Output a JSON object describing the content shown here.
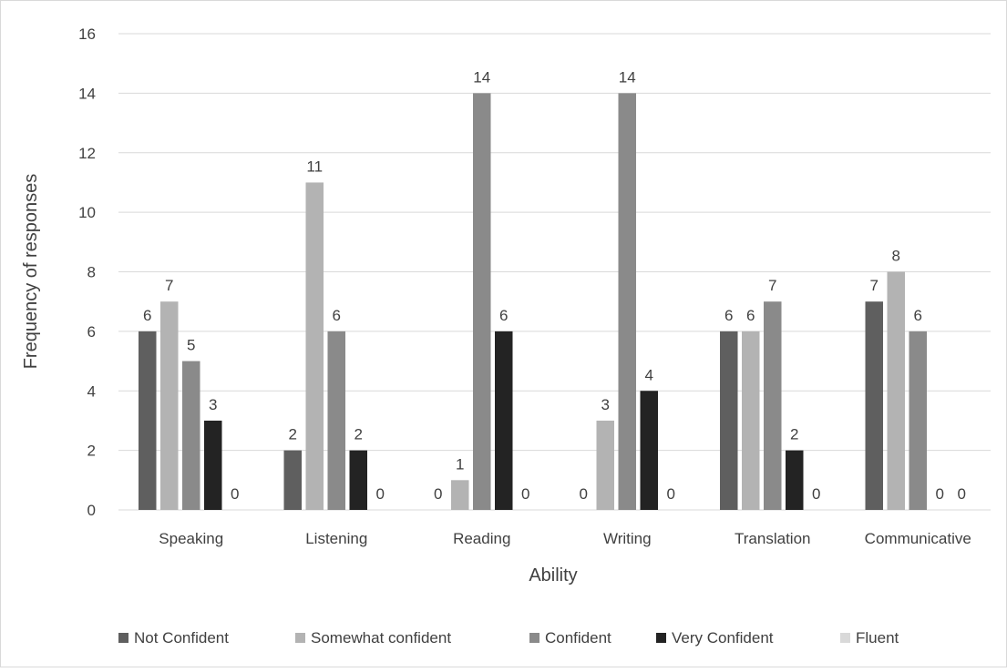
{
  "chart_data": {
    "type": "bar",
    "title": "",
    "xlabel": "Ability",
    "ylabel": "Frequency of responses",
    "ylim": [
      0,
      16
    ],
    "yticks": [
      0,
      2,
      4,
      6,
      8,
      10,
      12,
      14,
      16
    ],
    "grid": true,
    "legend_position": "bottom",
    "categories": [
      "Speaking",
      "Listening",
      "Reading",
      "Writing",
      "Translation",
      "Communicative"
    ],
    "series": [
      {
        "name": "Not Confident",
        "color": "#5f5f5f",
        "values": [
          6,
          2,
          0,
          0,
          6,
          7
        ]
      },
      {
        "name": "Somewhat confident",
        "color": "#b3b3b3",
        "values": [
          7,
          11,
          1,
          3,
          6,
          8
        ]
      },
      {
        "name": "Confident",
        "color": "#8a8a8a",
        "values": [
          5,
          6,
          14,
          14,
          7,
          6
        ]
      },
      {
        "name": "Very Confident",
        "color": "#232323",
        "values": [
          3,
          2,
          6,
          4,
          2,
          0
        ]
      },
      {
        "name": "Fluent",
        "color": "#d9d9d9",
        "values": [
          0,
          0,
          0,
          0,
          0,
          0
        ]
      }
    ],
    "data_labels": [
      [
        "6",
        "2",
        "0",
        "0",
        "6",
        "7"
      ],
      [
        "7",
        "11",
        "1",
        "3",
        "6",
        "8"
      ],
      [
        "5",
        "6",
        "14",
        "14",
        "7",
        "6"
      ],
      [
        "3",
        "2",
        "6",
        "4",
        "2",
        "0"
      ],
      [
        "0",
        "0",
        "0",
        "0",
        "0",
        "0"
      ]
    ]
  }
}
